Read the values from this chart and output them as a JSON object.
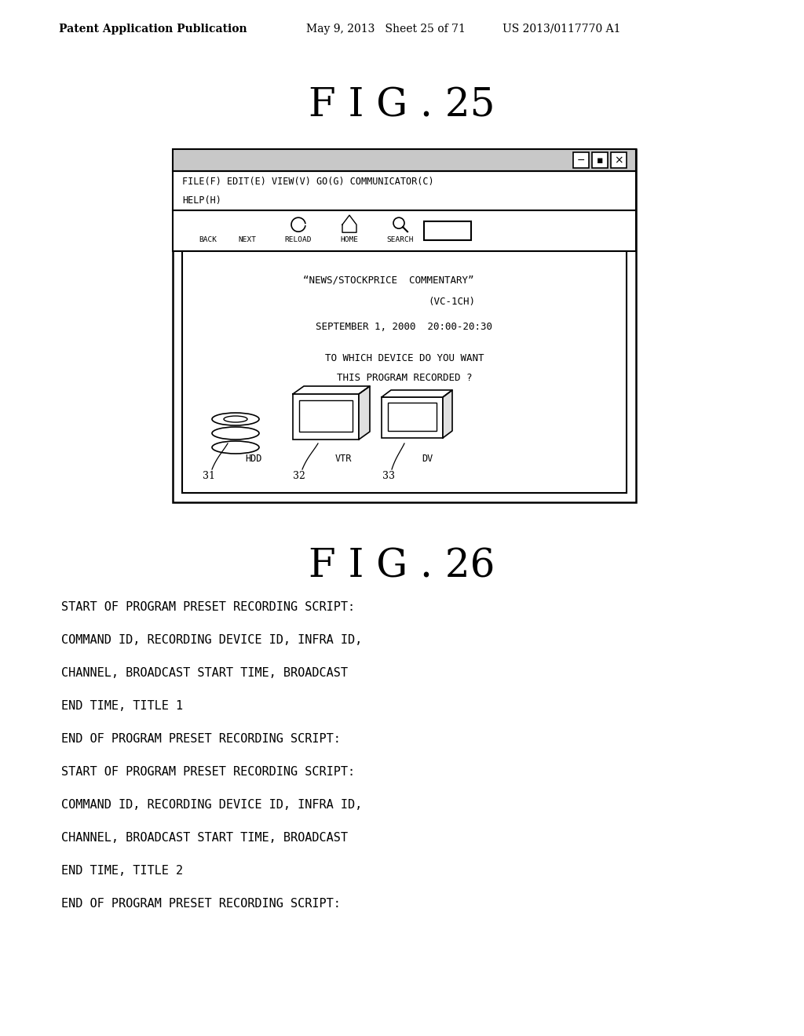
{
  "bg_color": "#ffffff",
  "header_text_left": "Patent Application Publication",
  "header_text_mid": "May 9, 2013   Sheet 25 of 71",
  "header_text_right": "US 2013/0117770 A1",
  "fig25_title": "F I G . 25",
  "fig26_title": "F I G . 26",
  "menu_line1": "FILE(F) EDIT(E) VIEW(V) GO(G) COMMUNICATOR(C)",
  "menu_line2": "HELP(H)",
  "nav_items": [
    "BACK",
    "NEXT",
    "RELOAD",
    "HOME",
    "SEARCH"
  ],
  "content_line1": "“NEWS/STOCKPRICE  COMMENTARY”",
  "content_line2": "(VC-1CH)",
  "content_line3": "SEPTEMBER 1, 2000  20:00-20:30",
  "content_line4": "TO WHICH DEVICE DO YOU WANT",
  "content_line5": "THIS PROGRAM RECORDED ?",
  "device_labels": [
    "HDD",
    "VTR",
    "DV"
  ],
  "device_numbers": [
    "31",
    "32",
    "33"
  ],
  "script_lines": [
    "START OF PROGRAM PRESET RECORDING SCRIPT:",
    "COMMAND ID, RECORDING DEVICE ID, INFRA ID,",
    "CHANNEL, BROADCAST START TIME, BROADCAST",
    "END TIME, TITLE 1",
    "END OF PROGRAM PRESET RECORDING SCRIPT:",
    "START OF PROGRAM PRESET RECORDING SCRIPT:",
    "COMMAND ID, RECORDING DEVICE ID, INFRA ID,",
    "CHANNEL, BROADCAST START TIME, BROADCAST",
    "END TIME, TITLE 2",
    "END OF PROGRAM PRESET RECORDING SCRIPT:"
  ]
}
